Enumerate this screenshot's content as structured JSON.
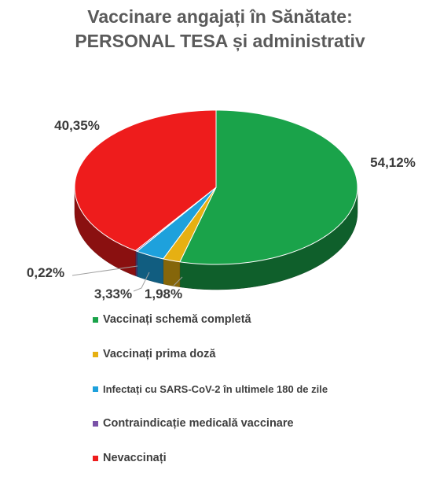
{
  "title": {
    "line1": "Vaccinare angajați în Sănătate:",
    "line2": "PERSONAL TESA și administrativ"
  },
  "chart_data": {
    "type": "pie",
    "title": "Vaccinare angajați în Sănătate: PERSONAL TESA și administrativ",
    "style": "3d",
    "legend_position": "bottom",
    "slices": [
      {
        "label": "Vaccinați schemă completă",
        "value": 54.12,
        "display": "54,12%",
        "color": "#1aa34a"
      },
      {
        "label": "Vaccinați prima doză",
        "value": 1.98,
        "display": "1,98%",
        "color": "#e6b012"
      },
      {
        "label": "Infectați cu SARS-CoV-2 în ultimele 180 de zile",
        "value": 3.33,
        "display": "3,33%",
        "color": "#1ea1dc"
      },
      {
        "label": "Contraindicație medicală vaccinare",
        "value": 0.22,
        "display": "0,22%",
        "color": "#7a52a8"
      },
      {
        "label": "Nevaccinați",
        "value": 40.35,
        "display": "40,35%",
        "color": "#ee1c1c"
      }
    ]
  }
}
